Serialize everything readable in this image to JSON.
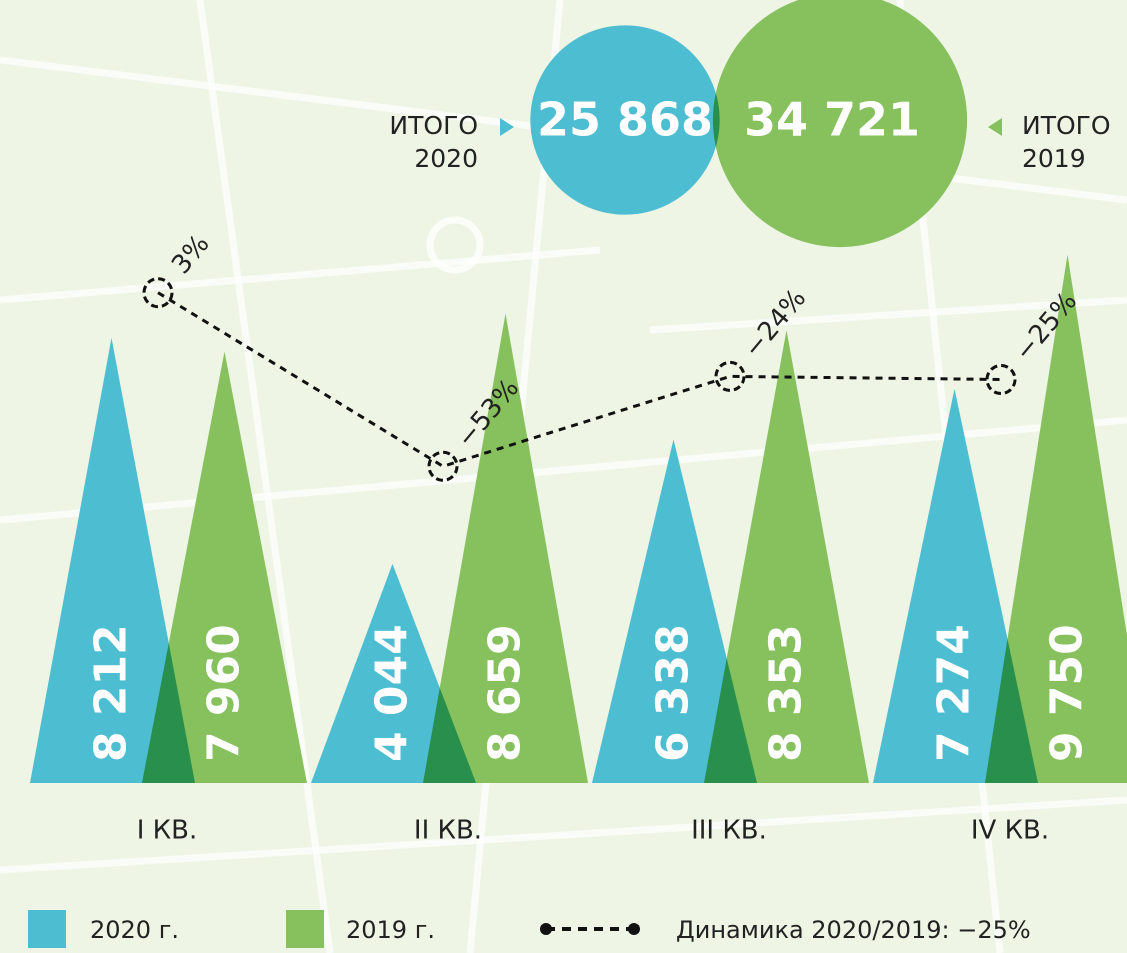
{
  "chart_data": {
    "type": "triangle",
    "categories": [
      "I КВ.",
      "II КВ.",
      "III КВ.",
      "IV КВ."
    ],
    "series": [
      {
        "name": "2020 г.",
        "color": "#4dbdd1",
        "values": [
          8212,
          4044,
          6338,
          7274
        ],
        "value_labels": [
          "8 212",
          "4 044",
          "6 338",
          "7 274"
        ]
      },
      {
        "name": "2019 г.",
        "color": "#86c15d",
        "values": [
          7960,
          8659,
          8353,
          9750
        ],
        "value_labels": [
          "7 960",
          "8 659",
          "8 353",
          "9 750"
        ]
      }
    ],
    "dynamics": {
      "name": "Динамика 2020/2019: −25%",
      "values": [
        3,
        -53,
        -24,
        -25
      ],
      "value_labels": [
        "3%",
        "−53%",
        "−24%",
        "−25%"
      ]
    },
    "totals": [
      {
        "label": "ИТОГО",
        "year": "2020",
        "value": 25868,
        "value_label": "25 868"
      },
      {
        "label": "ИТОГО",
        "year": "2019",
        "value": 34721,
        "value_label": "34 721"
      }
    ]
  }
}
